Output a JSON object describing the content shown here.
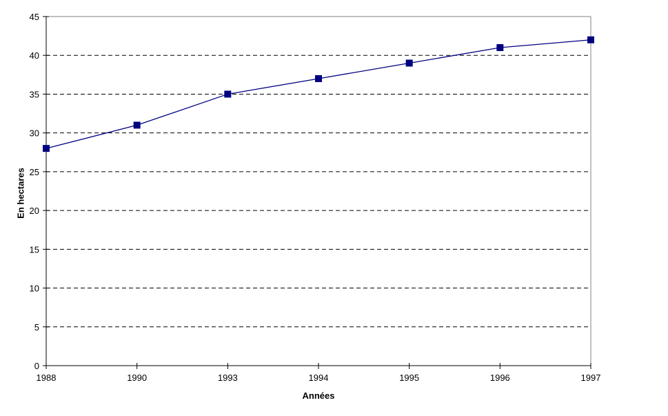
{
  "chart_data": {
    "type": "line",
    "title": "",
    "categories": [
      "1988",
      "1990",
      "1993",
      "1994",
      "1995",
      "1996",
      "1997"
    ],
    "series": [
      {
        "name": "En hectares",
        "values": [
          28,
          31,
          35,
          37,
          39,
          41,
          42
        ]
      }
    ],
    "xlabel": "Années",
    "ylabel": "En hectares",
    "ylim": [
      0,
      45
    ],
    "ytick_step": 5,
    "yticks": [
      0,
      5,
      10,
      15,
      20,
      25,
      30,
      35,
      40,
      45
    ],
    "grid": "horizontal-dashed",
    "legend_position": "none",
    "line_color": "#000080",
    "marker": "square",
    "marker_color": "#000080",
    "gridline_color": "#000000",
    "axis_color": "#000000",
    "plot_border_color": "#808080",
    "background_color": "#ffffff"
  }
}
